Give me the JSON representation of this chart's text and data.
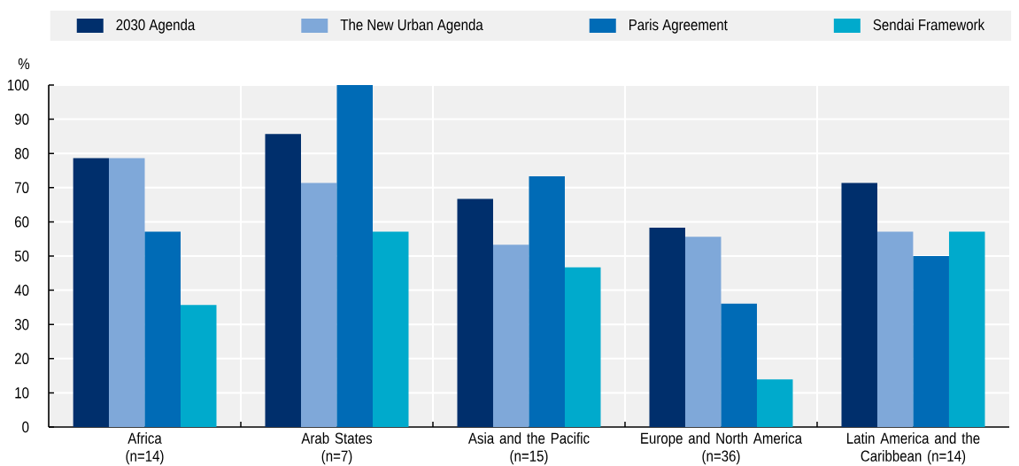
{
  "chart_data": {
    "type": "bar",
    "ylabel": "%",
    "legend": "top",
    "grid": true,
    "categories": [
      "Africa\n(n=14)",
      "Arab States\n(n=7)",
      "Asia and the Pacific\n(n=15)",
      "Europe and North America\n(n=36)",
      "Latin America and the\nCaribbean (n=14)"
    ],
    "series": [
      {
        "name": "2030 Agenda",
        "color": "#002f6c",
        "values": [
          78.6,
          85.7,
          66.7,
          58.3,
          71.4
        ]
      },
      {
        "name": "The New Urban Agenda",
        "color": "#7fa8d9",
        "values": [
          78.6,
          71.4,
          53.3,
          55.6,
          57.1
        ]
      },
      {
        "name": "Paris Agreement",
        "color": "#006bb6",
        "values": [
          57.1,
          100,
          73.3,
          36.1,
          50
        ]
      },
      {
        "name": "Sendai Framework",
        "color": "#00aacc",
        "values": [
          35.7,
          57.1,
          46.7,
          13.9,
          57.1
        ]
      }
    ],
    "ylim": [
      0,
      100
    ],
    "yticks": [
      0,
      10,
      20,
      30,
      40,
      50,
      60,
      70,
      80,
      90,
      100
    ]
  }
}
